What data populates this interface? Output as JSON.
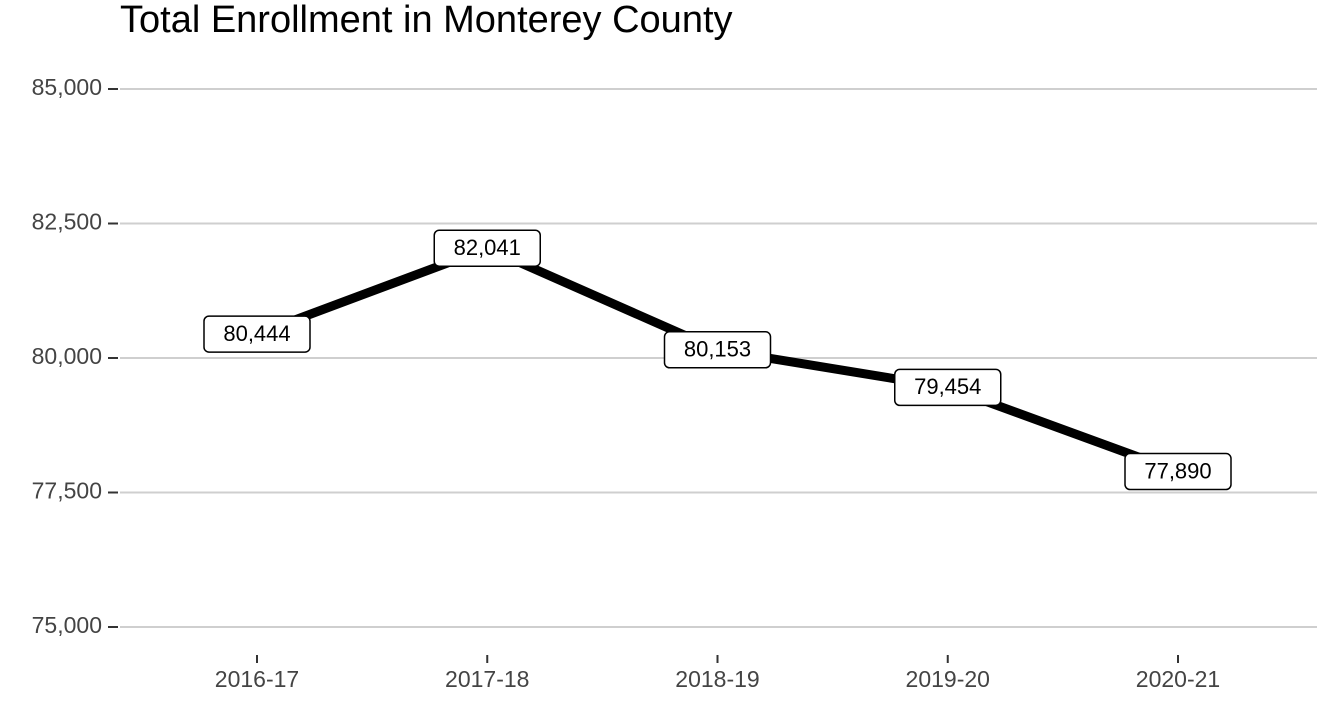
{
  "chart_data": {
    "type": "line",
    "title": "Total Enrollment in Monterey County",
    "categories": [
      "2016-17",
      "2017-18",
      "2018-19",
      "2019-20",
      "2020-21"
    ],
    "series": [
      {
        "name": "Total Enrollment",
        "color": "#000000",
        "values": [
          80444,
          82041,
          80153,
          79454,
          77890
        ],
        "value_labels": [
          "80,444",
          "82,041",
          "80,153",
          "79,454",
          "77,890"
        ]
      }
    ],
    "ylim": [
      75000,
      85000
    ],
    "yticks": [
      {
        "value": 75000,
        "label": "75,000"
      },
      {
        "value": 77500,
        "label": "77,500"
      },
      {
        "value": 80000,
        "label": "80,000"
      },
      {
        "value": 82500,
        "label": "82,500"
      },
      {
        "value": 85000,
        "label": "85,000"
      }
    ],
    "grid": true
  }
}
